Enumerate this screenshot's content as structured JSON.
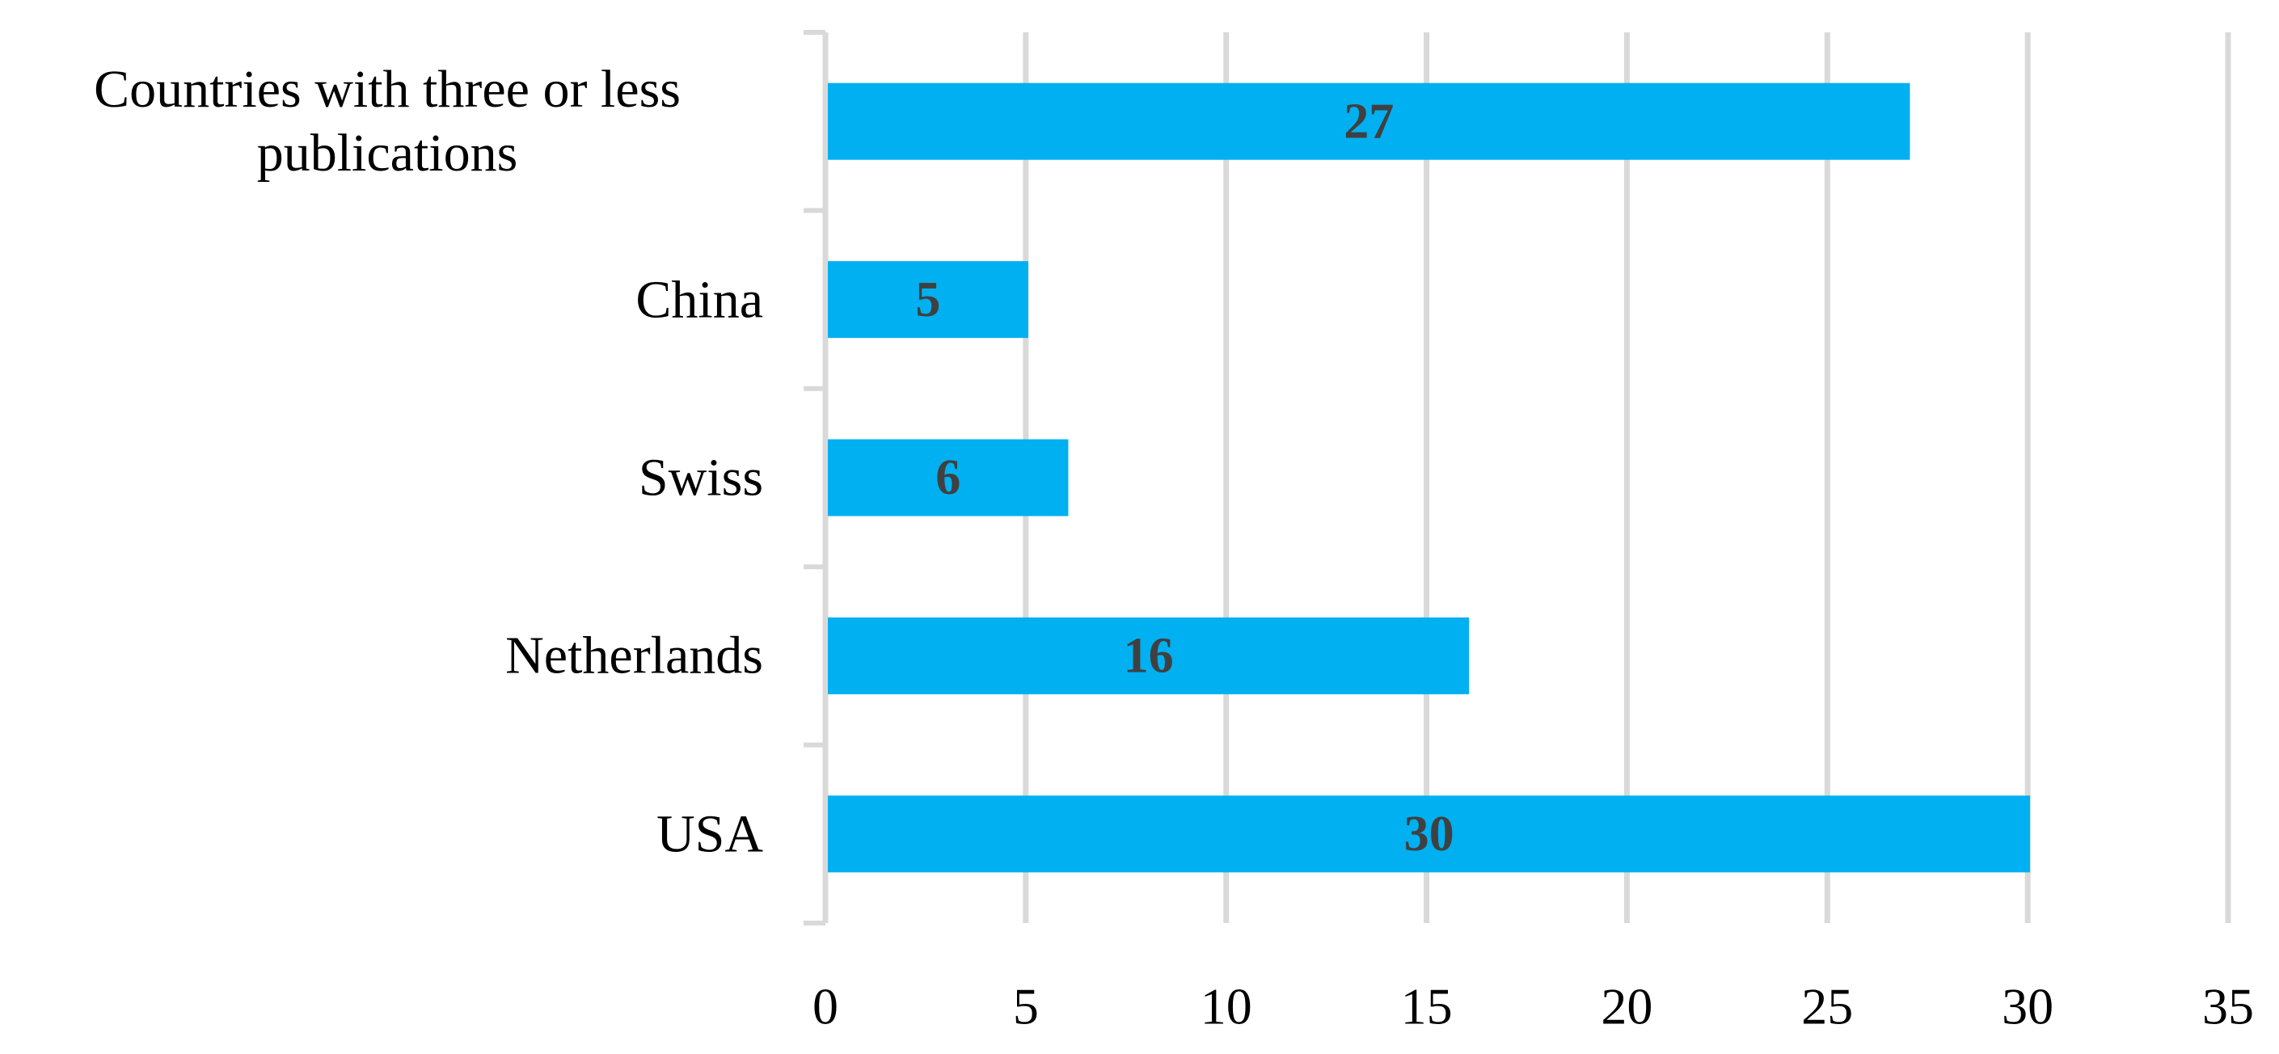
{
  "chart_data": {
    "type": "hbar",
    "categories": [
      "Countries with three or less publications",
      "China",
      "Swiss",
      "Netherlands",
      "USA"
    ],
    "values": [
      27,
      5,
      6,
      16,
      30
    ],
    "color": "#00b0f0",
    "xlim": [
      0,
      35
    ],
    "xticks": [
      0,
      5,
      10,
      15,
      20,
      25,
      30,
      35
    ],
    "grid": true
  }
}
